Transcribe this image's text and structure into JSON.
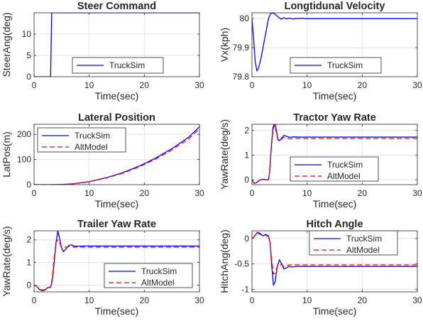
{
  "chart_data": [
    {
      "type": "line",
      "title": "Steer Command",
      "xlabel": "Time(sec)",
      "ylabel": "SteerAng(deg)",
      "xlim": [
        0,
        30
      ],
      "ylim": [
        0,
        15
      ],
      "xticks": [
        0,
        10,
        20,
        30
      ],
      "yticks": [
        0,
        5,
        10
      ],
      "grid": true,
      "legend": "bottom-center",
      "series": [
        {
          "name": "TruckSim",
          "color": "#0000ff",
          "dash": "solid",
          "x": [
            0,
            3.0,
            3.2,
            30
          ],
          "y": [
            0,
            0,
            15,
            15
          ]
        }
      ]
    },
    {
      "type": "line",
      "title": "Longtidunal Velocity",
      "xlabel": "Time(sec)",
      "ylabel": "Vx(kph)",
      "xlim": [
        0,
        30
      ],
      "ylim": [
        79.8,
        80.02
      ],
      "xticks": [
        0,
        10,
        20,
        30
      ],
      "yticks": [
        79.8,
        79.9,
        80
      ],
      "grid": true,
      "legend": "bottom-center",
      "series": [
        {
          "name": "TruckSim",
          "color": "#0000ff",
          "dash": "solid",
          "x": [
            0,
            0.3,
            0.6,
            0.9,
            1.2,
            1.6,
            2.0,
            2.5,
            3.0,
            3.3,
            3.7,
            4.2,
            4.8,
            5.3,
            5.8,
            6.3,
            6.8,
            7.3,
            8,
            9,
            10,
            12,
            15,
            20,
            25,
            30
          ],
          "y": [
            80.0,
            79.93,
            79.85,
            79.82,
            79.83,
            79.86,
            79.9,
            79.95,
            80.0,
            80.015,
            80.02,
            80.015,
            80.005,
            79.998,
            80.003,
            79.999,
            80.002,
            79.999,
            80.0,
            80.001,
            80.0,
            80.0,
            80.0,
            80.0,
            80.0,
            80.0
          ]
        }
      ]
    },
    {
      "type": "line",
      "title": "Lateral Position",
      "xlabel": "Time(sec)",
      "ylabel": "LatPos(m)",
      "xlim": [
        0,
        30
      ],
      "ylim": [
        0,
        240
      ],
      "xticks": [
        0,
        10,
        20,
        30
      ],
      "yticks": [
        0,
        100,
        200
      ],
      "grid": true,
      "legend": "top-left",
      "series": [
        {
          "name": "TruckSim",
          "color": "#0000ff",
          "dash": "solid",
          "x": [
            0,
            3,
            5,
            7,
            10,
            13,
            16,
            19,
            22,
            25,
            28,
            30
          ],
          "y": [
            0,
            0,
            0.8,
            3,
            12,
            27,
            47,
            73,
            105,
            143,
            188,
            230
          ]
        },
        {
          "name": "AltModel",
          "color": "#ff0000",
          "dash": "dashed",
          "x": [
            0,
            3,
            5,
            7,
            10,
            13,
            16,
            19,
            22,
            25,
            28,
            30
          ],
          "y": [
            0,
            0,
            0.8,
            3,
            11.5,
            26,
            45,
            70,
            101,
            138,
            181,
            222
          ]
        }
      ]
    },
    {
      "type": "line",
      "title": "Tractor Yaw Rate",
      "xlabel": "Time(sec)",
      "ylabel": "YawRate(deg/s)",
      "xlim": [
        0,
        30
      ],
      "ylim": [
        -0.2,
        2.25
      ],
      "xticks": [
        0,
        10,
        20,
        30
      ],
      "yticks": [
        0,
        1,
        2
      ],
      "grid": true,
      "legend": "bottom-center",
      "series": [
        {
          "name": "TruckSim",
          "color": "#0000ff",
          "dash": "solid",
          "x": [
            0,
            0.4,
            0.8,
            1.2,
            1.8,
            2.5,
            3.0,
            3.2,
            3.5,
            3.8,
            4.1,
            4.4,
            4.7,
            5.0,
            5.4,
            5.8,
            6.3,
            6.8,
            7.5,
            8.5,
            10,
            15,
            20,
            25,
            30
          ],
          "y": [
            0,
            -0.15,
            -0.12,
            -0.05,
            0.02,
            0.0,
            0.0,
            0.3,
            1.3,
            2.1,
            2.35,
            2.05,
            1.65,
            1.58,
            1.7,
            1.8,
            1.76,
            1.72,
            1.74,
            1.73,
            1.73,
            1.73,
            1.73,
            1.73,
            1.73
          ]
        },
        {
          "name": "AltModel",
          "color": "#ff0000",
          "dash": "dashed",
          "x": [
            0,
            0.4,
            0.8,
            1.2,
            1.8,
            2.5,
            3.0,
            3.2,
            3.5,
            3.8,
            4.1,
            4.4,
            4.7,
            5.0,
            5.4,
            5.8,
            6.3,
            6.8,
            7.5,
            8.5,
            10,
            15,
            20,
            25,
            30
          ],
          "y": [
            0,
            -0.14,
            -0.11,
            -0.04,
            0.02,
            0.0,
            0.0,
            0.3,
            1.25,
            2.0,
            2.22,
            1.95,
            1.62,
            1.57,
            1.66,
            1.72,
            1.69,
            1.66,
            1.67,
            1.67,
            1.67,
            1.67,
            1.67,
            1.67,
            1.67
          ]
        }
      ]
    },
    {
      "type": "line",
      "title": "Trailer Yaw Rate",
      "xlabel": "Time(sec)",
      "ylabel": "YawRate(deg/s)",
      "xlim": [
        0,
        30
      ],
      "ylim": [
        -0.3,
        2.4
      ],
      "xticks": [
        0,
        10,
        20,
        30
      ],
      "yticks": [
        0,
        1,
        2
      ],
      "grid": true,
      "legend": "bottom-center",
      "series": [
        {
          "name": "TruckSim",
          "color": "#0000ff",
          "dash": "solid",
          "x": [
            0,
            0.5,
            1.0,
            1.5,
            2.0,
            2.5,
            3.0,
            3.3,
            3.6,
            4.0,
            4.3,
            4.6,
            4.9,
            5.3,
            5.8,
            6.3,
            6.8,
            7.3,
            8.0,
            9.0,
            10,
            15,
            20,
            25,
            30
          ],
          "y": [
            0,
            -0.05,
            -0.2,
            -0.25,
            -0.22,
            -0.1,
            -0.1,
            0.2,
            0.9,
            1.9,
            2.4,
            2.1,
            1.7,
            1.48,
            1.6,
            1.75,
            1.78,
            1.72,
            1.72,
            1.73,
            1.73,
            1.73,
            1.73,
            1.73,
            1.73
          ]
        },
        {
          "name": "AltModel",
          "color": "#ff0000",
          "dash": "dashed",
          "x": [
            0,
            0.5,
            1.0,
            1.5,
            2.0,
            2.5,
            3.0,
            3.3,
            3.6,
            4.0,
            4.3,
            4.6,
            4.9,
            5.3,
            5.8,
            6.3,
            6.8,
            7.3,
            8.0,
            9.0,
            10,
            15,
            20,
            25,
            30
          ],
          "y": [
            0,
            -0.05,
            -0.18,
            -0.22,
            -0.2,
            -0.1,
            -0.08,
            0.3,
            1.1,
            1.9,
            2.0,
            1.88,
            1.72,
            1.66,
            1.68,
            1.7,
            1.7,
            1.68,
            1.68,
            1.68,
            1.68,
            1.68,
            1.68,
            1.68,
            1.68
          ]
        }
      ]
    },
    {
      "type": "line",
      "title": "Hitch Angle",
      "xlabel": "Time(sec)",
      "ylabel": "HitchAng(deg)",
      "xlim": [
        0,
        30
      ],
      "ylim": [
        -1.05,
        0.15
      ],
      "xticks": [
        0,
        10,
        20,
        30
      ],
      "yticks": [
        -1,
        -0.5,
        0
      ],
      "grid": true,
      "legend": "top-right",
      "series": [
        {
          "name": "TruckSim",
          "color": "#0000ff",
          "dash": "solid",
          "x": [
            0,
            0.5,
            1.0,
            1.5,
            2.0,
            2.5,
            3.0,
            3.3,
            3.6,
            3.9,
            4.2,
            4.6,
            5.0,
            5.4,
            5.8,
            6.2,
            6.7,
            7.3,
            8.0,
            9.0,
            10,
            15,
            20,
            25,
            30
          ],
          "y": [
            0,
            0.05,
            0.12,
            0.1,
            0.05,
            0.08,
            0.05,
            -0.1,
            -0.55,
            -0.92,
            -0.85,
            -0.55,
            -0.42,
            -0.5,
            -0.6,
            -0.58,
            -0.55,
            -0.56,
            -0.55,
            -0.55,
            -0.55,
            -0.55,
            -0.55,
            -0.55,
            -0.55
          ]
        },
        {
          "name": "AltModel",
          "color": "#ff0000",
          "dash": "dashed",
          "x": [
            0,
            0.5,
            1.0,
            1.5,
            2.0,
            2.5,
            3.0,
            3.3,
            3.6,
            3.9,
            4.2,
            4.6,
            5.0,
            5.4,
            5.8,
            6.2,
            6.7,
            7.3,
            8.0,
            9.0,
            10,
            15,
            20,
            25,
            30
          ],
          "y": [
            0,
            0.05,
            0.1,
            0.08,
            0.05,
            0.06,
            0.04,
            -0.1,
            -0.45,
            -0.7,
            -0.68,
            -0.55,
            -0.5,
            -0.52,
            -0.55,
            -0.54,
            -0.52,
            -0.52,
            -0.52,
            -0.52,
            -0.52,
            -0.52,
            -0.52,
            -0.52,
            -0.52
          ]
        }
      ]
    }
  ]
}
